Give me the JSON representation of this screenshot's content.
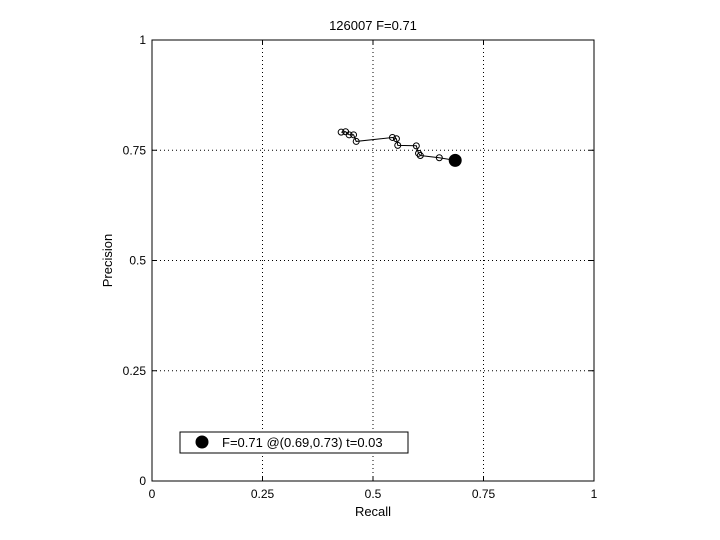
{
  "chart_data": {
    "type": "line",
    "title": "126007 F=0.71",
    "xlabel": "Recall",
    "ylabel": "Precision",
    "xlim": [
      0,
      1
    ],
    "ylim": [
      0,
      1
    ],
    "xticks": [
      0,
      0.25,
      0.5,
      0.75,
      1
    ],
    "xtick_labels": [
      "0",
      "0.25",
      "0.5",
      "0.75",
      "1"
    ],
    "yticks": [
      0,
      0.25,
      0.5,
      0.75,
      1
    ],
    "ytick_labels": [
      "0",
      "0.25",
      "0.5",
      "0.75",
      "1"
    ],
    "grid": true,
    "legend_position": "bottom-left",
    "series": [
      {
        "marker": "open-circle",
        "x": [
          0.428,
          0.438,
          0.446,
          0.456,
          0.462,
          0.544,
          0.553,
          0.556,
          0.598,
          0.603,
          0.607,
          0.65,
          0.686
        ],
        "y": [
          0.791,
          0.792,
          0.785,
          0.785,
          0.77,
          0.779,
          0.776,
          0.761,
          0.76,
          0.743,
          0.738,
          0.733,
          0.727
        ]
      }
    ],
    "highlight_point": {
      "x": 0.686,
      "y": 0.727
    },
    "legend": [
      {
        "marker": "filled-circle",
        "label": "F=0.71 @(0.69,0.73) t=0.03"
      }
    ]
  }
}
